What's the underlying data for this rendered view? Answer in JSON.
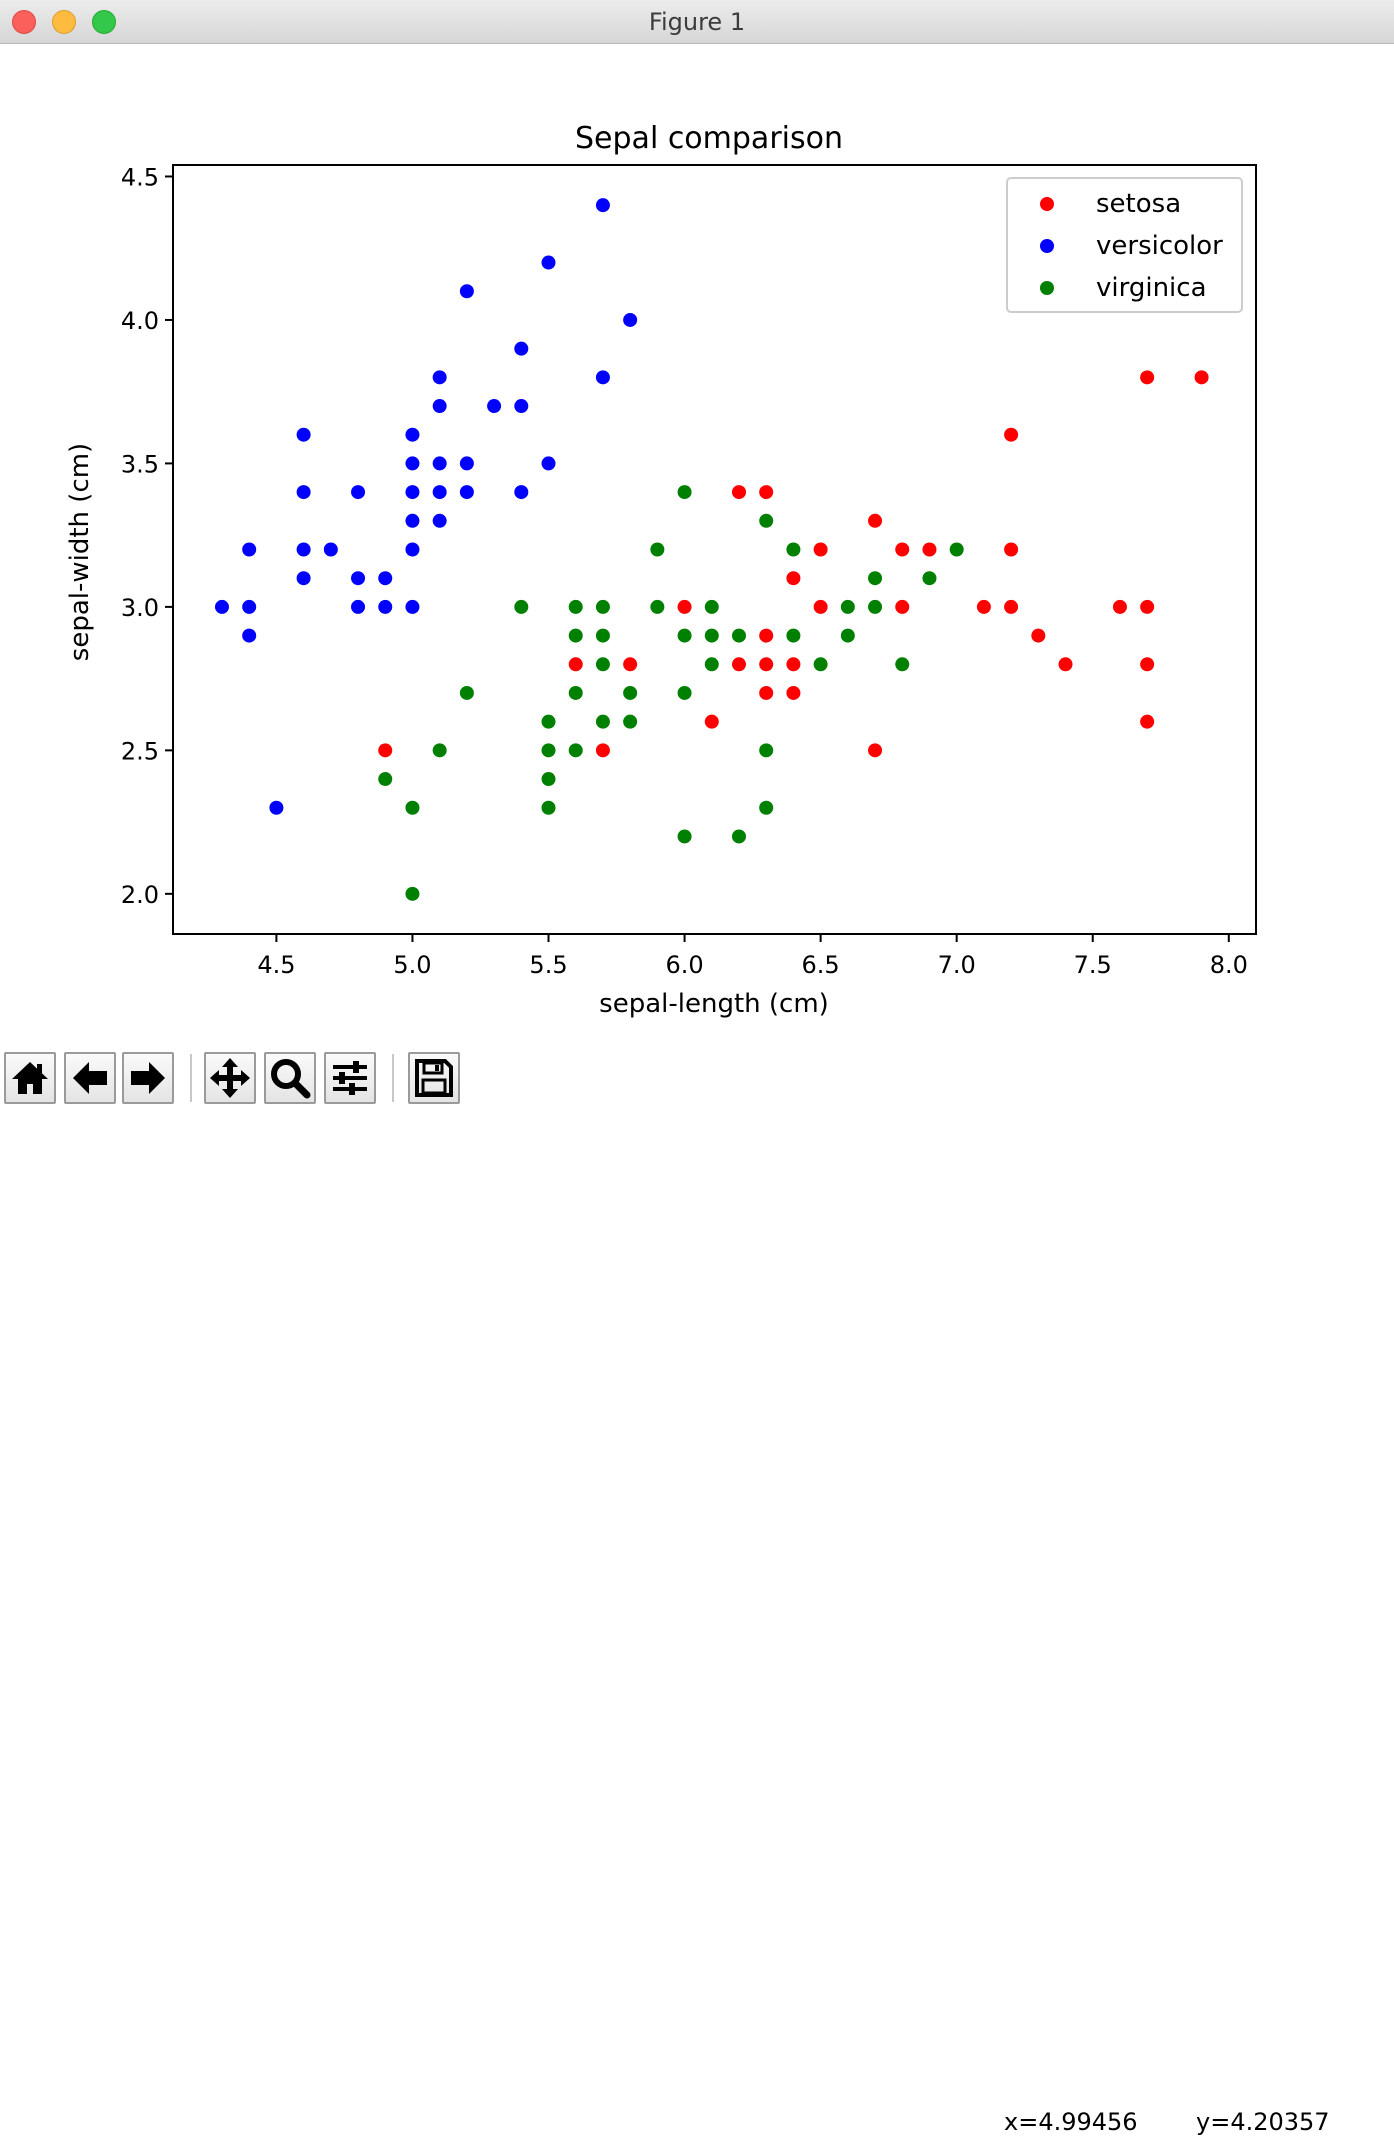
{
  "window": {
    "title": "Figure 1"
  },
  "toolbar": {
    "buttons": [
      {
        "name": "home-button",
        "icon": "home-icon"
      },
      {
        "name": "back-button",
        "icon": "arrow-left-icon"
      },
      {
        "name": "forward-button",
        "icon": "arrow-right-icon"
      },
      {
        "name": "pan-button",
        "icon": "move-icon"
      },
      {
        "name": "zoom-button",
        "icon": "magnifier-icon"
      },
      {
        "name": "configure-subplots-button",
        "icon": "sliders-icon"
      },
      {
        "name": "save-button",
        "icon": "floppy-disk-icon"
      }
    ],
    "x_readout": "x=4.99456",
    "y_readout": "y=4.20357"
  },
  "chart_data": {
    "type": "scatter",
    "title": "Sepal comparison",
    "xlabel": "sepal-length (cm)",
    "ylabel": "sepal-width (cm)",
    "xlim": [
      4.12,
      8.1
    ],
    "ylim": [
      1.86,
      4.54
    ],
    "xticks": [
      4.5,
      5.0,
      5.5,
      6.0,
      6.5,
      7.0,
      7.5,
      8.0
    ],
    "yticks": [
      2.0,
      2.5,
      3.0,
      3.5,
      4.0,
      4.5
    ],
    "grid": false,
    "legend": "top-right",
    "series": [
      {
        "name": "setosa",
        "color": "#ff0000",
        "points": [
          [
            4.9,
            2.5
          ],
          [
            5.6,
            2.8
          ],
          [
            5.7,
            2.5
          ],
          [
            5.8,
            2.8
          ],
          [
            6.0,
            3.0
          ],
          [
            6.1,
            2.6
          ],
          [
            6.2,
            3.4
          ],
          [
            6.2,
            2.8
          ],
          [
            6.3,
            3.4
          ],
          [
            6.3,
            2.9
          ],
          [
            6.3,
            2.8
          ],
          [
            6.3,
            2.7
          ],
          [
            6.4,
            3.1
          ],
          [
            6.4,
            2.8
          ],
          [
            6.4,
            2.7
          ],
          [
            6.5,
            3.2
          ],
          [
            6.5,
            3.0
          ],
          [
            6.7,
            3.3
          ],
          [
            6.7,
            2.5
          ],
          [
            6.8,
            3.2
          ],
          [
            6.8,
            3.0
          ],
          [
            6.9,
            3.2
          ],
          [
            7.1,
            3.0
          ],
          [
            7.2,
            3.6
          ],
          [
            7.2,
            3.2
          ],
          [
            7.2,
            3.0
          ],
          [
            7.3,
            2.9
          ],
          [
            7.4,
            2.8
          ],
          [
            7.6,
            3.0
          ],
          [
            7.7,
            3.8
          ],
          [
            7.7,
            3.0
          ],
          [
            7.7,
            2.8
          ],
          [
            7.7,
            2.6
          ],
          [
            7.9,
            3.8
          ]
        ]
      },
      {
        "name": "versicolor",
        "color": "#0000ff",
        "points": [
          [
            4.3,
            3.0
          ],
          [
            4.4,
            3.2
          ],
          [
            4.4,
            3.0
          ],
          [
            4.4,
            2.9
          ],
          [
            4.5,
            2.3
          ],
          [
            4.6,
            3.6
          ],
          [
            4.6,
            3.4
          ],
          [
            4.6,
            3.2
          ],
          [
            4.6,
            3.1
          ],
          [
            4.7,
            3.2
          ],
          [
            4.8,
            3.4
          ],
          [
            4.8,
            3.1
          ],
          [
            4.8,
            3.0
          ],
          [
            4.9,
            3.1
          ],
          [
            4.9,
            3.0
          ],
          [
            5.0,
            3.6
          ],
          [
            5.0,
            3.5
          ],
          [
            5.0,
            3.4
          ],
          [
            5.0,
            3.3
          ],
          [
            5.0,
            3.2
          ],
          [
            5.0,
            3.0
          ],
          [
            5.1,
            3.8
          ],
          [
            5.1,
            3.7
          ],
          [
            5.1,
            3.5
          ],
          [
            5.1,
            3.4
          ],
          [
            5.1,
            3.3
          ],
          [
            5.2,
            4.1
          ],
          [
            5.2,
            3.5
          ],
          [
            5.2,
            3.4
          ],
          [
            5.3,
            3.7
          ],
          [
            5.4,
            3.9
          ],
          [
            5.4,
            3.7
          ],
          [
            5.4,
            3.4
          ],
          [
            5.5,
            4.2
          ],
          [
            5.5,
            3.5
          ],
          [
            5.7,
            4.4
          ],
          [
            5.7,
            3.8
          ],
          [
            5.8,
            4.0
          ]
        ]
      },
      {
        "name": "virginica",
        "color": "#008000",
        "points": [
          [
            4.9,
            2.4
          ],
          [
            5.0,
            2.3
          ],
          [
            5.0,
            2.0
          ],
          [
            5.1,
            2.5
          ],
          [
            5.2,
            2.7
          ],
          [
            5.4,
            3.0
          ],
          [
            5.5,
            2.6
          ],
          [
            5.5,
            2.5
          ],
          [
            5.5,
            2.4
          ],
          [
            5.5,
            2.3
          ],
          [
            5.6,
            3.0
          ],
          [
            5.6,
            2.9
          ],
          [
            5.6,
            2.7
          ],
          [
            5.6,
            2.5
          ],
          [
            5.7,
            3.0
          ],
          [
            5.7,
            2.9
          ],
          [
            5.7,
            2.8
          ],
          [
            5.7,
            2.6
          ],
          [
            5.8,
            2.7
          ],
          [
            5.8,
            2.6
          ],
          [
            5.9,
            3.2
          ],
          [
            5.9,
            3.0
          ],
          [
            6.0,
            3.4
          ],
          [
            6.0,
            2.9
          ],
          [
            6.0,
            2.7
          ],
          [
            6.0,
            2.2
          ],
          [
            6.1,
            3.0
          ],
          [
            6.1,
            2.9
          ],
          [
            6.1,
            2.8
          ],
          [
            6.2,
            2.9
          ],
          [
            6.2,
            2.2
          ],
          [
            6.3,
            3.3
          ],
          [
            6.3,
            2.5
          ],
          [
            6.3,
            2.3
          ],
          [
            6.4,
            3.2
          ],
          [
            6.4,
            2.9
          ],
          [
            6.5,
            2.8
          ],
          [
            6.6,
            3.0
          ],
          [
            6.6,
            2.9
          ],
          [
            6.7,
            3.1
          ],
          [
            6.7,
            3.0
          ],
          [
            6.8,
            2.8
          ],
          [
            6.9,
            3.1
          ],
          [
            7.0,
            3.2
          ]
        ]
      }
    ]
  }
}
